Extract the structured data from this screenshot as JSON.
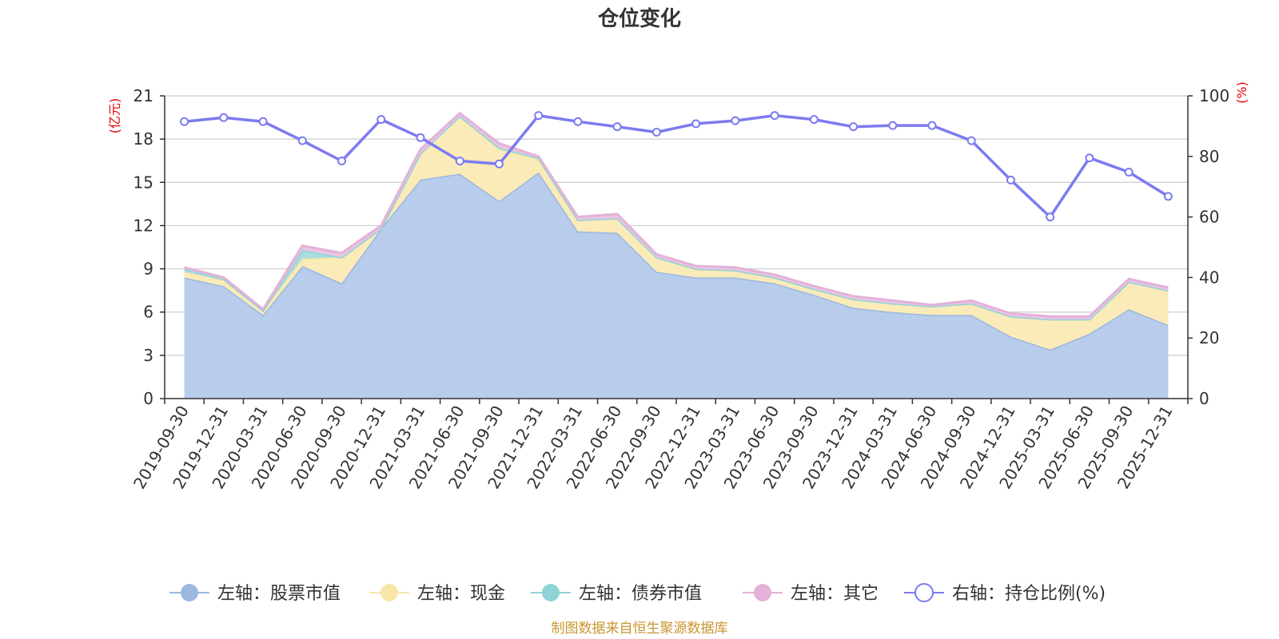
{
  "chart_data": {
    "type": "area",
    "title": "仓位变化",
    "left_unit": "(亿元)",
    "right_unit": "(%)",
    "categories": [
      "2019-09-30",
      "2019-12-31",
      "2020-03-31",
      "2020-06-30",
      "2020-09-30",
      "2020-12-31",
      "2021-03-31",
      "2021-06-30",
      "2021-09-30",
      "2021-12-31",
      "2022-03-31",
      "2022-06-30",
      "2022-09-30",
      "2022-12-31",
      "2023-03-31",
      "2023-06-30",
      "2023-09-30",
      "2023-12-31",
      "2024-03-31",
      "2024-06-30",
      "2024-09-30",
      "2024-12-31",
      "2025-03-31",
      "2025-06-30",
      "2025-09-30",
      "2025-12-31"
    ],
    "left_axis": {
      "min": 0,
      "max": 21,
      "ticks": [
        0,
        3,
        6,
        9,
        12,
        15,
        18,
        21
      ]
    },
    "right_axis": {
      "min": 0,
      "max": 100,
      "ticks": [
        0,
        20,
        40,
        60,
        80,
        100
      ]
    },
    "series": [
      {
        "name": "左轴：股票市值",
        "axis": "left",
        "color": "#9bb8e0",
        "fill": "#b8cceb",
        "values": [
          8.4,
          7.8,
          5.8,
          9.2,
          8.0,
          11.8,
          15.2,
          15.6,
          13.7,
          15.7,
          11.6,
          11.5,
          8.8,
          8.4,
          8.4,
          8.0,
          7.2,
          6.3,
          6.0,
          5.8,
          5.8,
          4.3,
          3.4,
          4.5,
          6.2,
          5.1
        ]
      },
      {
        "name": "左轴：现金",
        "axis": "left",
        "color": "#f7e6a8",
        "fill": "#faebb8",
        "values": [
          0.4,
          0.4,
          0.3,
          0.5,
          1.8,
          0.0,
          1.8,
          4.0,
          3.6,
          0.9,
          0.8,
          1.0,
          1.0,
          0.6,
          0.5,
          0.4,
          0.4,
          0.6,
          0.6,
          0.6,
          0.8,
          1.4,
          2.1,
          1.0,
          1.9,
          2.4
        ]
      },
      {
        "name": "左轴：债券市值",
        "axis": "left",
        "color": "#8fd3d6",
        "fill": "#a9dde0",
        "values": [
          0.2,
          0.1,
          0.0,
          0.6,
          0.0,
          0.0,
          0.0,
          0.0,
          0.1,
          0.1,
          0.0,
          0.0,
          0.0,
          0.0,
          0.0,
          0.0,
          0.0,
          0.0,
          0.0,
          0.0,
          0.0,
          0.0,
          0.0,
          0.0,
          0.0,
          0.0
        ]
      },
      {
        "name": "左轴：其它",
        "axis": "left",
        "color": "#e3b2d8",
        "fill": "#ebc5e3",
        "values": [
          0.1,
          0.1,
          0.1,
          0.3,
          0.3,
          0.2,
          0.3,
          0.2,
          0.3,
          0.1,
          0.2,
          0.3,
          0.2,
          0.2,
          0.2,
          0.2,
          0.2,
          0.2,
          0.2,
          0.1,
          0.2,
          0.2,
          0.2,
          0.2,
          0.2,
          0.2
        ]
      },
      {
        "name": "右轴：持仓比例(%)",
        "axis": "right",
        "color": "#7b7bf0",
        "values": [
          91.5,
          92.8,
          91.5,
          85.2,
          78.5,
          92.2,
          86.2,
          78.5,
          77.5,
          93.5,
          91.5,
          89.8,
          88.0,
          90.8,
          91.8,
          93.5,
          92.2,
          89.8,
          90.2,
          90.2,
          85.2,
          72.2,
          60.0,
          79.5,
          74.8,
          66.8
        ]
      }
    ],
    "footer": "制图数据来自恒生聚源数据库"
  }
}
